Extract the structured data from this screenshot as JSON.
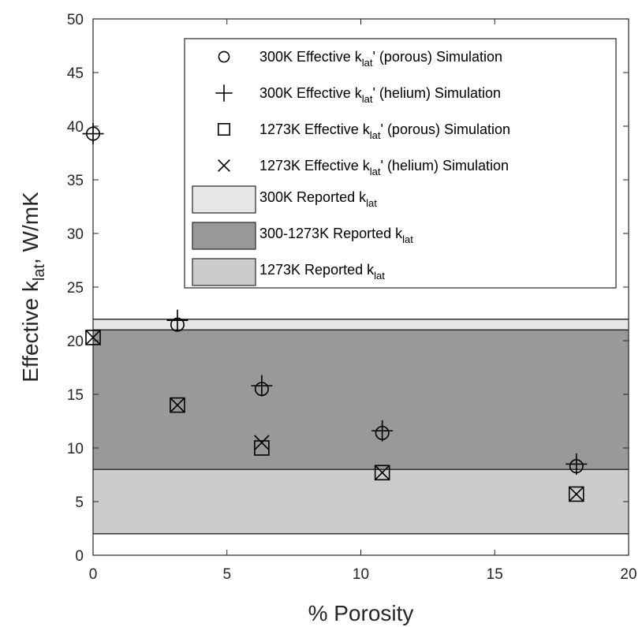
{
  "chart_data": {
    "type": "scatter",
    "xlabel": "% Porosity",
    "ylabel": "Effective k",
    "ylabel_sub": "lat",
    "ylabel_suffix": ", W/mK",
    "xlim": [
      0,
      20
    ],
    "ylim": [
      0,
      50
    ],
    "x_ticks": [
      0,
      5,
      10,
      15,
      20
    ],
    "y_ticks": [
      0,
      5,
      10,
      15,
      20,
      25,
      30,
      35,
      40,
      45,
      50
    ],
    "grid": false,
    "legend_position": "top-right",
    "bands": [
      {
        "name": "300K Reported k",
        "name_sub": "lat",
        "y_range": [
          21.0,
          22.0
        ],
        "color": "#e6e6e6"
      },
      {
        "name": "300-1273K Reported k",
        "name_sub": "lat",
        "y_range": [
          8.0,
          21.0
        ],
        "color": "#999999"
      },
      {
        "name": "1273K Reported k",
        "name_sub": "lat",
        "y_range": [
          2.0,
          8.0
        ],
        "color": "#cccccc"
      }
    ],
    "series": [
      {
        "name": "300K Effective k",
        "name_sub": "lat",
        "name_tail": "' (porous) Simulation",
        "marker": "circle",
        "x": [
          0,
          3.15,
          6.3,
          10.8,
          18.05
        ],
        "y": [
          39.3,
          21.5,
          15.5,
          11.4,
          8.3
        ]
      },
      {
        "name": "300K Effective k",
        "name_sub": "lat",
        "name_tail": "' (helium) Simulation",
        "marker": "plus",
        "x": [
          0,
          3.15,
          6.3,
          10.8,
          18.05
        ],
        "y": [
          39.3,
          21.9,
          15.8,
          11.6,
          8.5
        ]
      },
      {
        "name": "1273K Effective k",
        "name_sub": "lat",
        "name_tail": "' (porous) Simulation",
        "marker": "square",
        "x": [
          0,
          3.15,
          6.3,
          10.8,
          18.05
        ],
        "y": [
          20.3,
          14.0,
          10.0,
          7.7,
          5.7
        ]
      },
      {
        "name": "1273K Effective k",
        "name_sub": "lat",
        "name_tail": "' (helium) Simulation",
        "marker": "x",
        "x": [
          0,
          3.15,
          6.3,
          10.8,
          18.05
        ],
        "y": [
          20.3,
          14.0,
          10.5,
          7.7,
          5.7
        ]
      }
    ]
  }
}
